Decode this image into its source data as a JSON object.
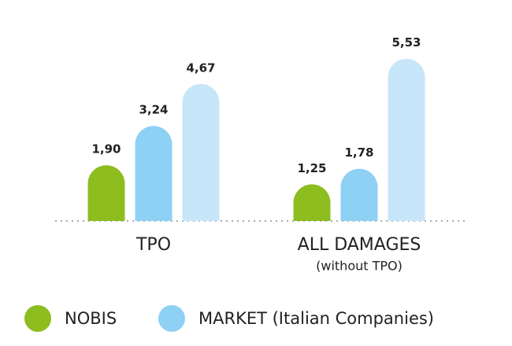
{
  "chart_data": {
    "type": "bar",
    "categories": [
      "TPO",
      "ALL DAMAGES"
    ],
    "category_sublabels": [
      null,
      "(without TPO)"
    ],
    "series": [
      {
        "name": "NOBIS",
        "color": "#8dbd1f",
        "values": [
          1.9,
          1.25
        ],
        "value_labels": [
          "1,90",
          "1,25"
        ]
      },
      {
        "name": "MARKET (Italian Companies)",
        "color": "#8fd0f5",
        "values": [
          3.24,
          1.78
        ],
        "value_labels": [
          "3,24",
          "1,78"
        ]
      },
      {
        "color": "#c8e6fa",
        "values": [
          4.67,
          5.53
        ],
        "value_labels": [
          "4,67",
          "5,53"
        ]
      }
    ]
  }
}
